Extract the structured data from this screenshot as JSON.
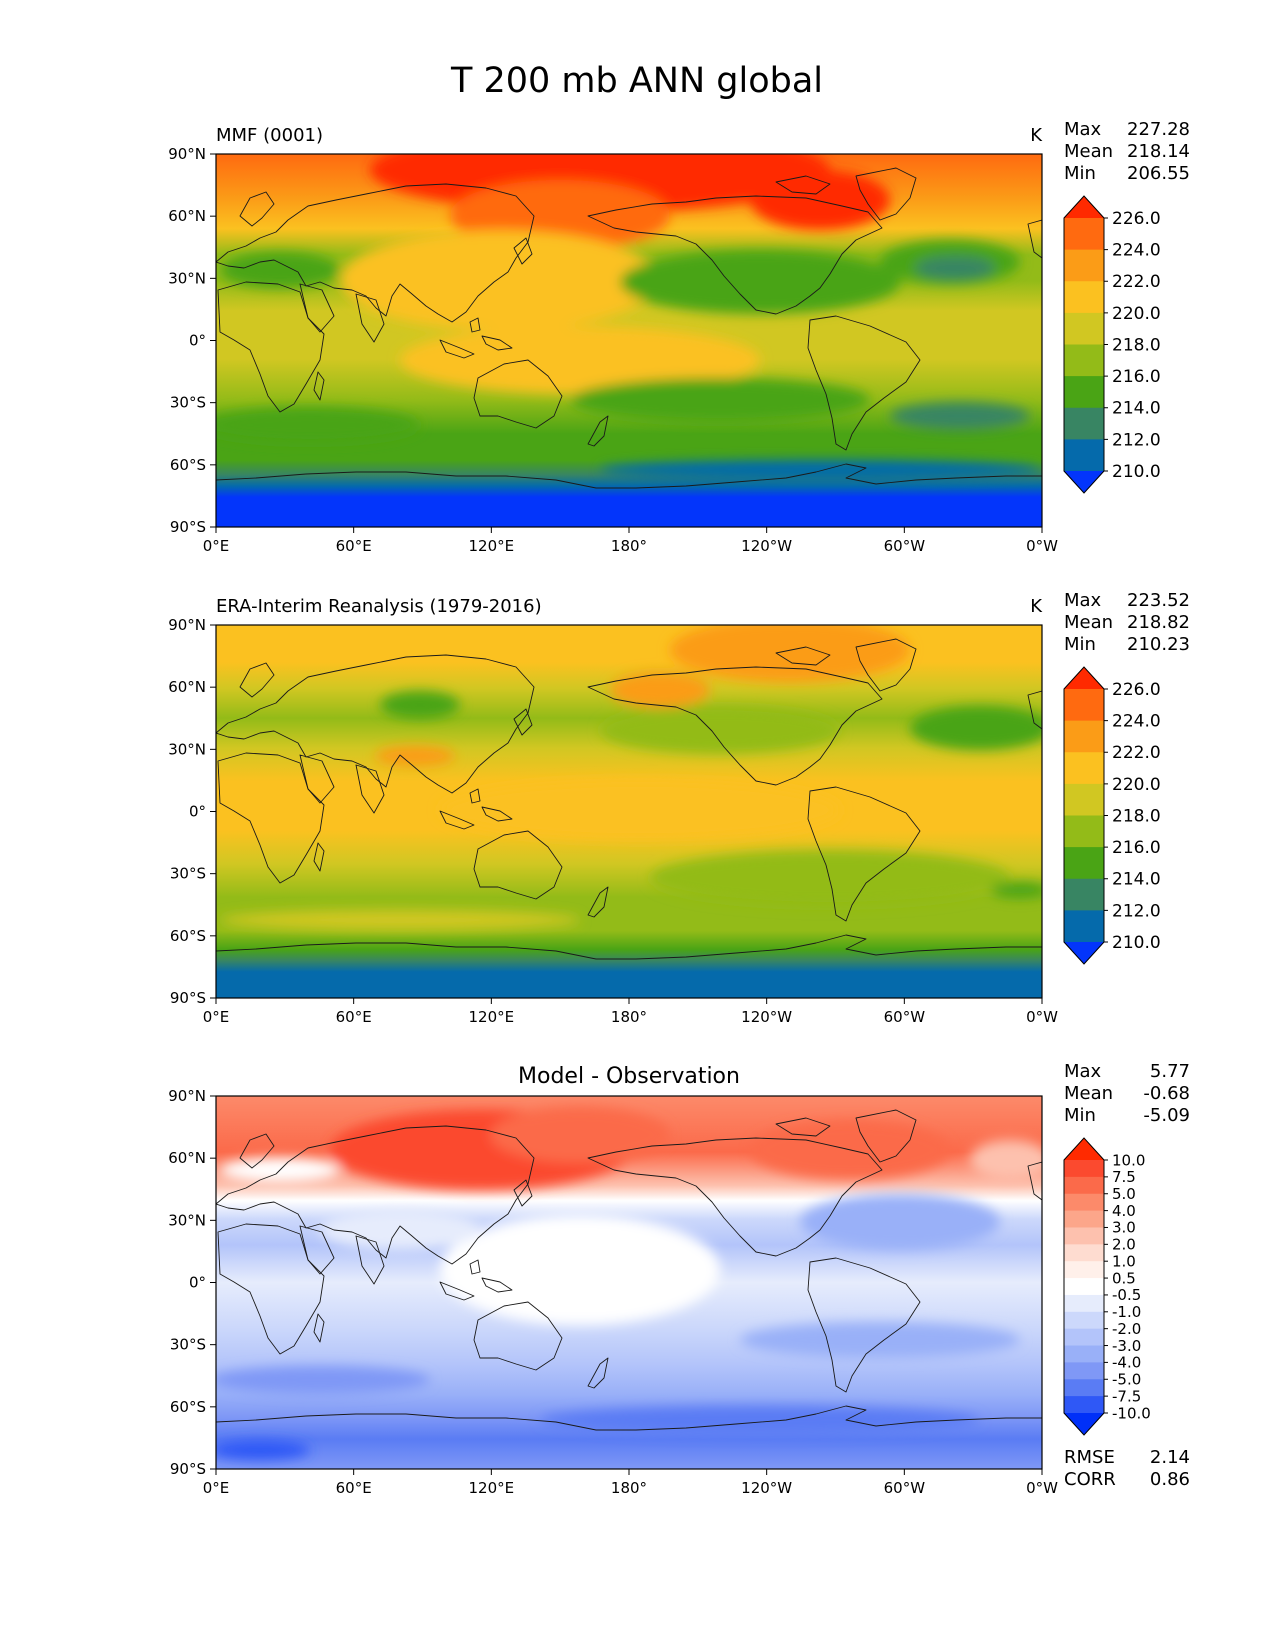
{
  "figure": {
    "title": "T 200 mb ANN global"
  },
  "panels": [
    {
      "left_label": "MMF (0001)",
      "center_label": "",
      "units": "K",
      "stats": [
        {
          "label": "Max",
          "value": "227.28"
        },
        {
          "label": "Mean",
          "value": "218.14"
        },
        {
          "label": "Min",
          "value": "206.55"
        }
      ],
      "colorbar": {
        "ticks": [
          "226.0",
          "224.0",
          "222.0",
          "220.0",
          "218.0",
          "216.0",
          "214.0",
          "212.0",
          "210.0"
        ],
        "colors": [
          "#ff2a00",
          "#ff6a10",
          "#fb9c17",
          "#fbc120",
          "#d1c722",
          "#93bb18",
          "#4aa415",
          "#388563",
          "#056aab",
          "#0335fb"
        ]
      }
    },
    {
      "left_label": "ERA-Interim Reanalysis (1979-2016)",
      "center_label": "",
      "units": "K",
      "stats": [
        {
          "label": "Max",
          "value": "223.52"
        },
        {
          "label": "Mean",
          "value": "218.82"
        },
        {
          "label": "Min",
          "value": "210.23"
        }
      ],
      "colorbar": {
        "ticks": [
          "226.0",
          "224.0",
          "222.0",
          "220.0",
          "218.0",
          "216.0",
          "214.0",
          "212.0",
          "210.0"
        ],
        "colors": [
          "#ff2a00",
          "#ff6a10",
          "#fb9c17",
          "#fbc120",
          "#d1c722",
          "#93bb18",
          "#4aa415",
          "#388563",
          "#056aab",
          "#0335fb"
        ]
      }
    },
    {
      "left_label": "",
      "center_label": "Model - Observation",
      "units": "",
      "stats": [
        {
          "label": "Max",
          "value": "5.77"
        },
        {
          "label": "Mean",
          "value": "-0.68"
        },
        {
          "label": "Min",
          "value": "-5.09"
        }
      ],
      "extra_stats": [
        {
          "label": "RMSE",
          "value": "2.14"
        },
        {
          "label": "CORR",
          "value": "0.86"
        }
      ],
      "colorbar": {
        "ticks": [
          "10.0",
          "7.5",
          "5.0",
          "4.0",
          "3.0",
          "2.0",
          "1.0",
          "0.5",
          "-0.5",
          "-1.0",
          "-2.0",
          "-3.0",
          "-4.0",
          "-5.0",
          "-7.5",
          "-10.0"
        ],
        "colors": [
          "#ff2a00",
          "#fb4a2f",
          "#fb6a4a",
          "#fc8a6a",
          "#fca68a",
          "#fdc1ae",
          "#fedcd0",
          "#fff0ea",
          "#ffffff",
          "#e6ecfc",
          "#ccd8fb",
          "#b3c4fa",
          "#99b0f8",
          "#7f98f6",
          "#5a7cf4",
          "#2f58f6",
          "#0030f8"
        ]
      }
    }
  ],
  "axes": {
    "lat_ticks": [
      "90°N",
      "60°N",
      "30°N",
      "0°",
      "30°S",
      "60°S",
      "90°S"
    ],
    "lon_ticks": [
      "0°E",
      "60°E",
      "120°E",
      "180°",
      "120°W",
      "60°W",
      "0°W"
    ]
  },
  "chart_data": [
    {
      "type": "heatmap",
      "title": "MMF (0001)",
      "units": "K",
      "levels": [
        210.0,
        212.0,
        214.0,
        216.0,
        218.0,
        220.0,
        222.0,
        224.0,
        226.0
      ],
      "lon_ticks": [
        "0°E",
        "60°E",
        "120°E",
        "180°",
        "120°W",
        "60°W",
        "0°W"
      ],
      "lat_ticks": [
        "90°N",
        "60°N",
        "30°N",
        "0°",
        "30°S",
        "60°S",
        "90°S"
      ],
      "zonal_profile_K": [
        {
          "lat": 90,
          "value": 225
        },
        {
          "lat": 60,
          "value": 223
        },
        {
          "lat": 30,
          "value": 217
        },
        {
          "lat": 0,
          "value": 219
        },
        {
          "lat": -30,
          "value": 216.5
        },
        {
          "lat": -60,
          "value": 215
        },
        {
          "lat": -90,
          "value": 209
        }
      ],
      "max": 227.28,
      "mean": 218.14,
      "min": 206.55
    },
    {
      "type": "heatmap",
      "title": "ERA-Interim Reanalysis (1979-2016)",
      "units": "K",
      "levels": [
        210.0,
        212.0,
        214.0,
        216.0,
        218.0,
        220.0,
        222.0,
        224.0,
        226.0
      ],
      "lon_ticks": [
        "0°E",
        "60°E",
        "120°E",
        "180°",
        "120°W",
        "60°W",
        "0°W"
      ],
      "lat_ticks": [
        "90°N",
        "60°N",
        "30°N",
        "0°",
        "30°S",
        "60°S",
        "90°S"
      ],
      "zonal_profile_K": [
        {
          "lat": 90,
          "value": 221
        },
        {
          "lat": 60,
          "value": 218.5
        },
        {
          "lat": 30,
          "value": 218
        },
        {
          "lat": 0,
          "value": 220
        },
        {
          "lat": -30,
          "value": 217
        },
        {
          "lat": -60,
          "value": 216.5
        },
        {
          "lat": -90,
          "value": 213
        }
      ],
      "max": 223.52,
      "mean": 218.82,
      "min": 210.23
    },
    {
      "type": "heatmap",
      "title": "Model - Observation",
      "levels": [
        -10.0,
        -7.5,
        -5.0,
        -4.0,
        -3.0,
        -2.0,
        -1.0,
        -0.5,
        0.5,
        1.0,
        2.0,
        3.0,
        4.0,
        5.0,
        7.5,
        10.0
      ],
      "lon_ticks": [
        "0°E",
        "60°E",
        "120°E",
        "180°",
        "120°W",
        "60°W",
        "0°W"
      ],
      "lat_ticks": [
        "90°N",
        "60°N",
        "30°N",
        "0°",
        "30°S",
        "60°S",
        "90°S"
      ],
      "zonal_profile_diff": [
        {
          "lat": 90,
          "value": 3.5
        },
        {
          "lat": 60,
          "value": 4.5
        },
        {
          "lat": 45,
          "value": 0.2
        },
        {
          "lat": 30,
          "value": -1.5
        },
        {
          "lat": 0,
          "value": -0.8
        },
        {
          "lat": -30,
          "value": -1.8
        },
        {
          "lat": -60,
          "value": -2.5
        },
        {
          "lat": -90,
          "value": -4.0
        }
      ],
      "max": 5.77,
      "mean": -0.68,
      "min": -5.09,
      "rmse": 2.14,
      "corr": 0.86
    }
  ]
}
